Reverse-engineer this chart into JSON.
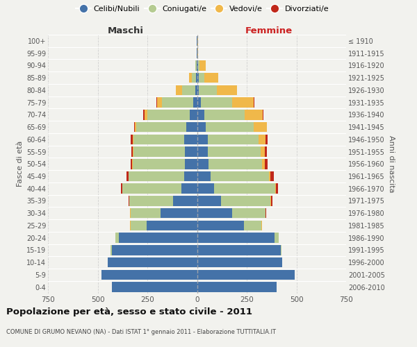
{
  "age_groups": [
    "0-4",
    "5-9",
    "10-14",
    "15-19",
    "20-24",
    "25-29",
    "30-34",
    "35-39",
    "40-44",
    "45-49",
    "50-54",
    "55-59",
    "60-64",
    "65-69",
    "70-74",
    "75-79",
    "80-84",
    "85-89",
    "90-94",
    "95-99",
    "100+"
  ],
  "birth_years": [
    "2006-2010",
    "2001-2005",
    "1996-2000",
    "1991-1995",
    "1986-1990",
    "1981-1985",
    "1976-1980",
    "1971-1975",
    "1966-1970",
    "1961-1965",
    "1956-1960",
    "1951-1955",
    "1946-1950",
    "1941-1945",
    "1936-1940",
    "1931-1935",
    "1926-1930",
    "1921-1925",
    "1916-1920",
    "1911-1915",
    "≤ 1910"
  ],
  "males_celibi": [
    430,
    480,
    450,
    430,
    395,
    255,
    185,
    120,
    80,
    65,
    60,
    60,
    65,
    55,
    35,
    20,
    10,
    5,
    3,
    1,
    2
  ],
  "males_coniugati": [
    0,
    0,
    0,
    5,
    15,
    80,
    150,
    220,
    295,
    280,
    265,
    260,
    255,
    250,
    215,
    155,
    65,
    20,
    5,
    0,
    0
  ],
  "males_vedovi": [
    0,
    0,
    0,
    0,
    1,
    1,
    1,
    1,
    1,
    1,
    2,
    3,
    5,
    8,
    15,
    25,
    30,
    15,
    2,
    0,
    0
  ],
  "males_divorziati": [
    0,
    0,
    0,
    0,
    1,
    1,
    3,
    5,
    8,
    10,
    8,
    8,
    10,
    3,
    5,
    3,
    1,
    0,
    0,
    0,
    0
  ],
  "females_nubili": [
    400,
    490,
    430,
    420,
    390,
    235,
    175,
    120,
    85,
    68,
    58,
    55,
    55,
    45,
    35,
    20,
    10,
    8,
    5,
    2,
    2
  ],
  "females_coniugate": [
    0,
    0,
    0,
    5,
    20,
    90,
    170,
    250,
    310,
    295,
    270,
    265,
    255,
    240,
    205,
    155,
    90,
    30,
    8,
    0,
    0
  ],
  "females_vedove": [
    0,
    0,
    0,
    0,
    1,
    1,
    1,
    2,
    3,
    5,
    12,
    20,
    35,
    65,
    90,
    110,
    100,
    70,
    30,
    3,
    2
  ],
  "females_divorziate": [
    0,
    0,
    0,
    0,
    1,
    2,
    3,
    8,
    10,
    20,
    15,
    10,
    10,
    3,
    3,
    2,
    1,
    0,
    0,
    0,
    0
  ],
  "color_celibi": "#4472a8",
  "color_coniugati": "#b5cb91",
  "color_vedovi": "#f0b84a",
  "color_divorziati": "#c0281a",
  "xlim": 750,
  "title": "Popolazione per età, sesso e stato civile - 2011",
  "subtitle": "COMUNE DI GRUMO NEVANO (NA) - Dati ISTAT 1° gennaio 2011 - Elaborazione TUTTITALIA.IT",
  "ylabel_left": "Fasce di età",
  "ylabel_right": "Anni di nascita",
  "label_male": "Maschi",
  "label_female": "Femmine",
  "background_color": "#f2f2ee",
  "legend_labels": [
    "Celibi/Nubili",
    "Coniugati/e",
    "Vedovi/e",
    "Divorziati/e"
  ]
}
